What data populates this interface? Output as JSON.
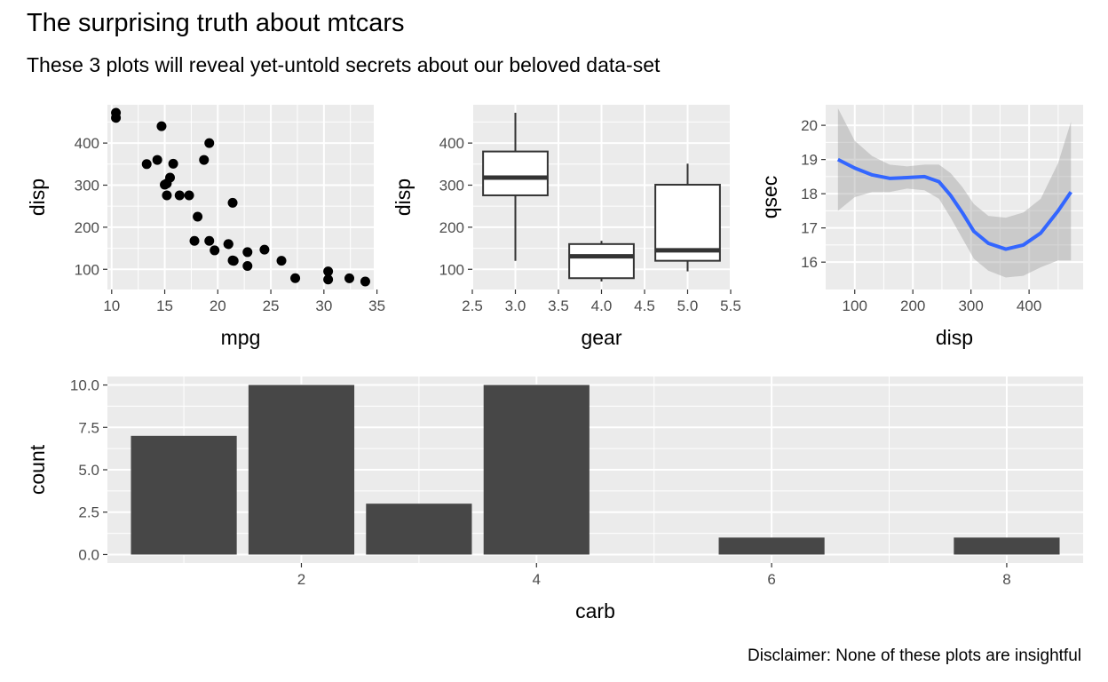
{
  "title": "The surprising truth about mtcars",
  "subtitle": "These 3 plots will reveal yet-untold secrets about our beloved data-set",
  "caption": "Disclaimer: None of these plots are insightful",
  "colors": {
    "panel": "#ebebeb",
    "grid": "#ffffff",
    "point": "#000000",
    "smooth": "#3366ff",
    "ribbon": "#999999",
    "bar": "#595959",
    "box": "#333333"
  },
  "chart_data": [
    {
      "type": "scatter",
      "xlabel": "mpg",
      "ylabel": "disp",
      "xlim": [
        9.6,
        34.7
      ],
      "ylim": [
        52,
        491
      ],
      "xticks": [
        10,
        15,
        20,
        25,
        30,
        35
      ],
      "yticks": [
        100,
        200,
        300,
        400
      ],
      "points": [
        [
          21.0,
          160
        ],
        [
          21.0,
          160
        ],
        [
          22.8,
          108
        ],
        [
          21.4,
          258
        ],
        [
          18.7,
          360
        ],
        [
          18.1,
          225
        ],
        [
          14.3,
          360
        ],
        [
          24.4,
          146.7
        ],
        [
          22.8,
          140.8
        ],
        [
          19.2,
          167.6
        ],
        [
          17.8,
          167.6
        ],
        [
          16.4,
          275.8
        ],
        [
          17.3,
          275.8
        ],
        [
          15.2,
          275.8
        ],
        [
          10.4,
          472
        ],
        [
          10.4,
          460
        ],
        [
          14.7,
          440
        ],
        [
          32.4,
          78.7
        ],
        [
          30.4,
          75.7
        ],
        [
          33.9,
          71.1
        ],
        [
          21.5,
          120.1
        ],
        [
          15.5,
          318
        ],
        [
          15.2,
          304
        ],
        [
          13.3,
          350
        ],
        [
          19.2,
          400
        ],
        [
          27.3,
          79
        ],
        [
          26.0,
          120.3
        ],
        [
          30.4,
          95.1
        ],
        [
          15.8,
          351
        ],
        [
          19.7,
          145
        ],
        [
          15.0,
          301
        ],
        [
          21.4,
          121
        ]
      ]
    },
    {
      "type": "box",
      "xlabel": "gear",
      "ylabel": "disp",
      "xlim": [
        2.5,
        5.5
      ],
      "ylim": [
        52,
        491
      ],
      "xticks": [
        2.5,
        3.0,
        3.5,
        4.0,
        4.5,
        5.0,
        5.5
      ],
      "xticklabels": [
        "2.5",
        "3.0",
        "3.5",
        "4.0",
        "4.5",
        "5.0",
        "5.5"
      ],
      "yticks": [
        100,
        200,
        300,
        400
      ],
      "boxes": [
        {
          "x": 3,
          "min": 120.1,
          "q1": 275.8,
          "median": 318,
          "q3": 380,
          "max": 472
        },
        {
          "x": 4,
          "min": 71.1,
          "q1": 78.9,
          "median": 130.9,
          "q3": 160,
          "max": 167.6
        },
        {
          "x": 5,
          "min": 95.1,
          "q1": 120.3,
          "median": 145,
          "q3": 301,
          "max": 351
        }
      ]
    },
    {
      "type": "line",
      "xlabel": "disp",
      "ylabel": "qsec",
      "xlim": [
        50,
        493
      ],
      "ylim": [
        15.2,
        20.6
      ],
      "xticks": [
        100,
        200,
        300,
        400
      ],
      "yticks": [
        16,
        17,
        18,
        19,
        20
      ],
      "smooth": [
        [
          71.1,
          19.0
        ],
        [
          100,
          18.75
        ],
        [
          130,
          18.55
        ],
        [
          160,
          18.45
        ],
        [
          190,
          18.47
        ],
        [
          220,
          18.5
        ],
        [
          245,
          18.35
        ],
        [
          265,
          17.95
        ],
        [
          285,
          17.45
        ],
        [
          305,
          16.9
        ],
        [
          330,
          16.55
        ],
        [
          360,
          16.38
        ],
        [
          390,
          16.5
        ],
        [
          420,
          16.85
        ],
        [
          450,
          17.5
        ],
        [
          472,
          18.05
        ]
      ],
      "band_upper": [
        [
          71.1,
          20.5
        ],
        [
          100,
          19.55
        ],
        [
          130,
          19.1
        ],
        [
          160,
          18.85
        ],
        [
          190,
          18.8
        ],
        [
          220,
          18.85
        ],
        [
          245,
          18.85
        ],
        [
          265,
          18.6
        ],
        [
          285,
          18.2
        ],
        [
          305,
          17.7
        ],
        [
          330,
          17.35
        ],
        [
          360,
          17.3
        ],
        [
          390,
          17.45
        ],
        [
          420,
          17.85
        ],
        [
          450,
          18.9
        ],
        [
          472,
          20.1
        ]
      ],
      "band_lower": [
        [
          71.1,
          17.5
        ],
        [
          100,
          17.9
        ],
        [
          130,
          18.05
        ],
        [
          160,
          18.05
        ],
        [
          190,
          18.15
        ],
        [
          220,
          18.1
        ],
        [
          245,
          17.85
        ],
        [
          265,
          17.3
        ],
        [
          285,
          16.7
        ],
        [
          305,
          16.1
        ],
        [
          330,
          15.75
        ],
        [
          360,
          15.55
        ],
        [
          390,
          15.6
        ],
        [
          420,
          15.85
        ],
        [
          450,
          16.05
        ],
        [
          472,
          16.05
        ]
      ]
    },
    {
      "type": "bar",
      "xlabel": "carb",
      "ylabel": "count",
      "xlim": [
        0.35,
        8.65
      ],
      "ylim": [
        -0.5,
        10.5
      ],
      "xticks": [
        2,
        4,
        6,
        8
      ],
      "yticks": [
        0.0,
        2.5,
        5.0,
        7.5,
        10.0
      ],
      "yticklabels": [
        "0.0",
        "2.5",
        "5.0",
        "7.5",
        "10.0"
      ],
      "categories": [
        1,
        2,
        3,
        4,
        6,
        8
      ],
      "values": [
        7,
        10,
        3,
        10,
        1,
        1
      ]
    }
  ]
}
